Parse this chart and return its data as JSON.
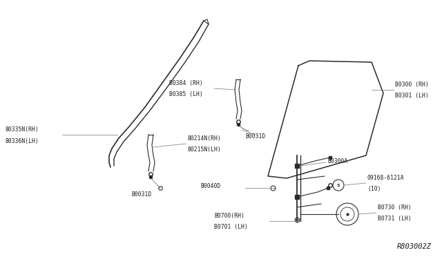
{
  "background_color": "#ffffff",
  "diagram_id": "R803002Z",
  "line_color": "#2a2a2a",
  "text_color": "#1a1a1a",
  "label_fontsize": 5.8,
  "diagram_id_fontsize": 7.5,
  "labels": {
    "80335N": "80335N(RH)\n80336N(LH)",
    "80214N": "80214N(RH)\n80215N(LH)",
    "B0031D_left": "B0031D",
    "B0031D_center": "B0031D",
    "80384": "B0384 (RH)\nB0385 (LH)",
    "80300": "B0300 (RH)\nB0301 (LH)",
    "B0300A": "B0300A",
    "B0040D": "B0040D",
    "09168": "09168-6121A\n(10)",
    "80700": "B0700(RH)\nB0701 (LH)",
    "80730": "B0730 (RH)\nB0731 (LH)"
  }
}
